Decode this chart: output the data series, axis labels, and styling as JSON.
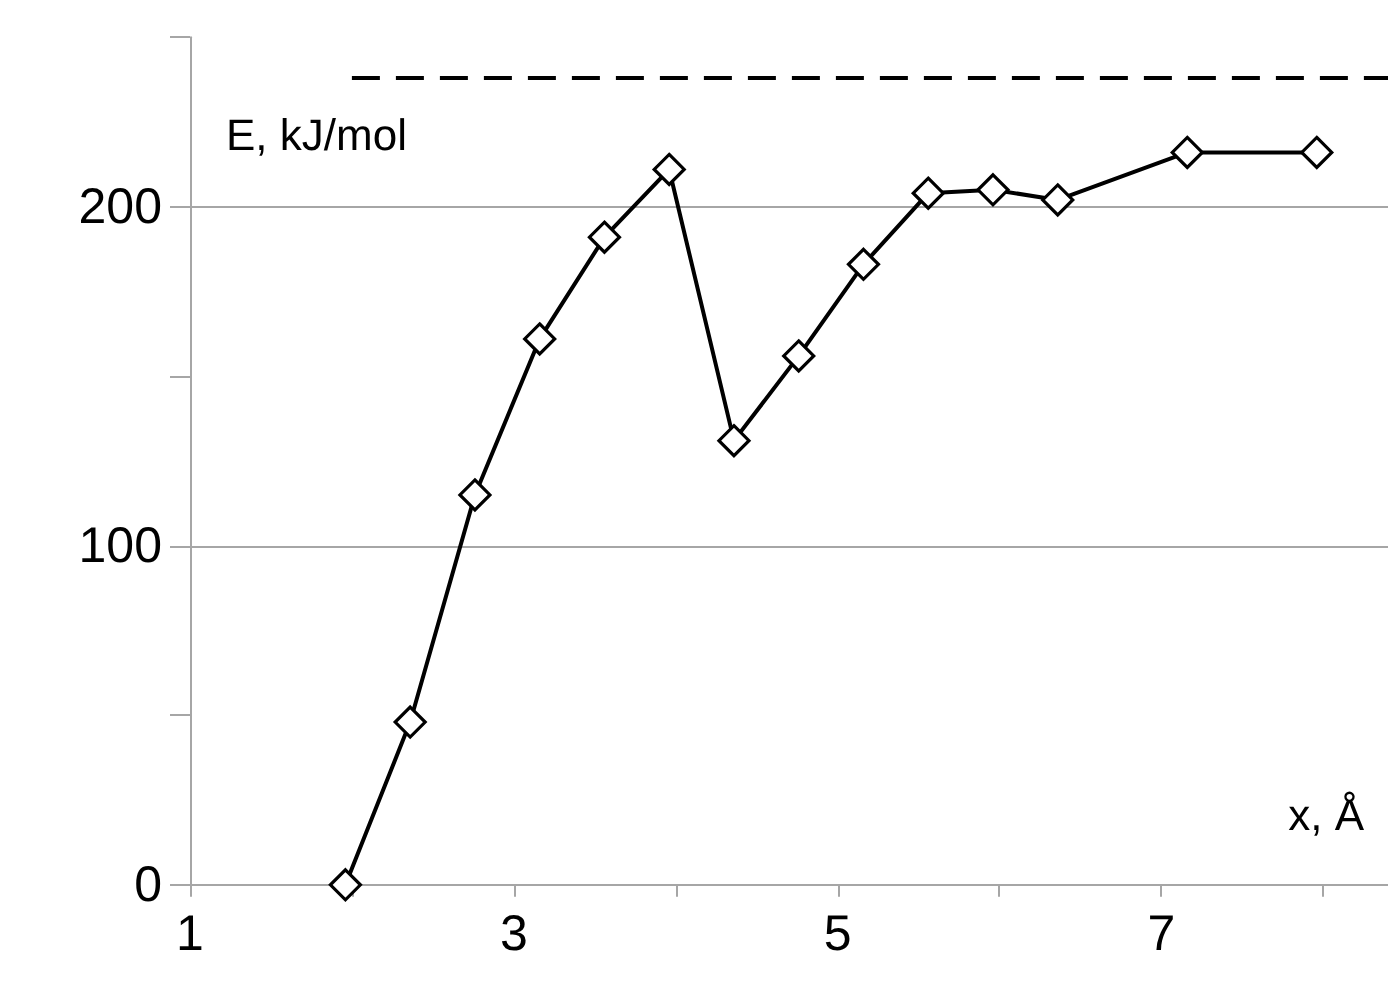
{
  "chart_data": {
    "type": "line",
    "xlabel": "x, Å",
    "ylabel": "E, kJ/mol",
    "series": [
      {
        "color": "#000000",
        "x": [
          1.96,
          2.36,
          2.76,
          3.16,
          3.56,
          3.96,
          4.36,
          4.76,
          5.16,
          5.56,
          5.96,
          6.36,
          7.16,
          7.96
        ],
        "values": [
          0,
          48,
          115,
          161,
          191,
          211,
          131,
          156,
          183,
          204,
          205,
          202,
          216,
          216
        ],
        "marker": "diamond",
        "line_style": "solid"
      },
      {
        "color": "#000000",
        "x": [
          2,
          8.4
        ],
        "values": [
          238,
          238
        ],
        "marker": "none",
        "line_style": "dashed"
      }
    ],
    "xlim": [
      1,
      8.4
    ],
    "xticks": [
      1,
      {
        "value": 2,
        "label": null
      },
      3,
      {
        "value": 4,
        "label": null
      },
      5,
      {
        "value": 6,
        "label": null
      },
      7,
      {
        "value": 8,
        "label": null
      }
    ],
    "ylim": [
      0,
      250
    ],
    "yticks": [
      0,
      {
        "value": 50,
        "label": null
      },
      100,
      {
        "value": 150,
        "label": null
      },
      200,
      {
        "value": 250,
        "label": null
      }
    ],
    "grid": "y"
  }
}
